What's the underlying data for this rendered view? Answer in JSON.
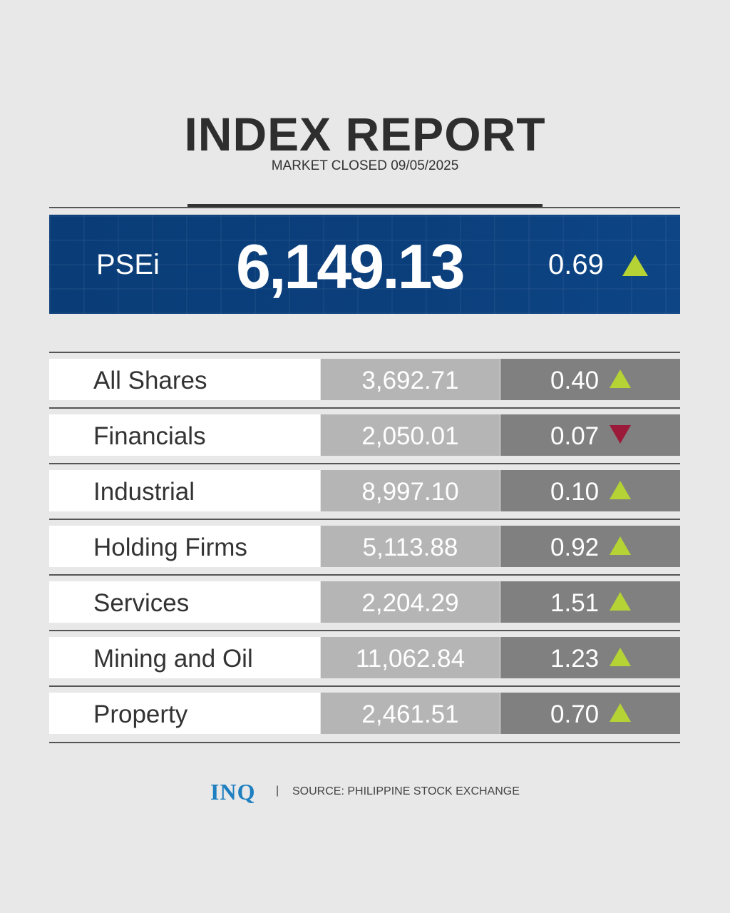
{
  "header": {
    "title": "INDEX REPORT",
    "subtitle": "MARKET CLOSED 09/05/2025"
  },
  "psei": {
    "label": "PSEi",
    "value": "6,149.13",
    "change": "0.69",
    "direction": "up"
  },
  "rows": [
    {
      "name": "All Shares",
      "value": "3,692.71",
      "change": "0.40",
      "direction": "up"
    },
    {
      "name": "Financials",
      "value": "2,050.01",
      "change": "0.07",
      "direction": "down"
    },
    {
      "name": "Industrial",
      "value": "8,997.10",
      "change": "0.10",
      "direction": "up"
    },
    {
      "name": "Holding Firms",
      "value": "5,113.88",
      "change": "0.92",
      "direction": "up"
    },
    {
      "name": "Services",
      "value": "2,204.29",
      "change": "1.51",
      "direction": "up"
    },
    {
      "name": "Mining and Oil",
      "value": "11,062.84",
      "change": "1.23",
      "direction": "up"
    },
    {
      "name": "Property",
      "value": "2,461.51",
      "change": "0.70",
      "direction": "up"
    }
  ],
  "colors": {
    "up": "#b5d334",
    "down": "#9b1a3a",
    "banner": "#0b3f7c",
    "logo": "#1e7fc1"
  },
  "footer": {
    "logo": "INQ",
    "separator": "|",
    "source": "SOURCE: PHILIPPINE STOCK EXCHANGE"
  }
}
